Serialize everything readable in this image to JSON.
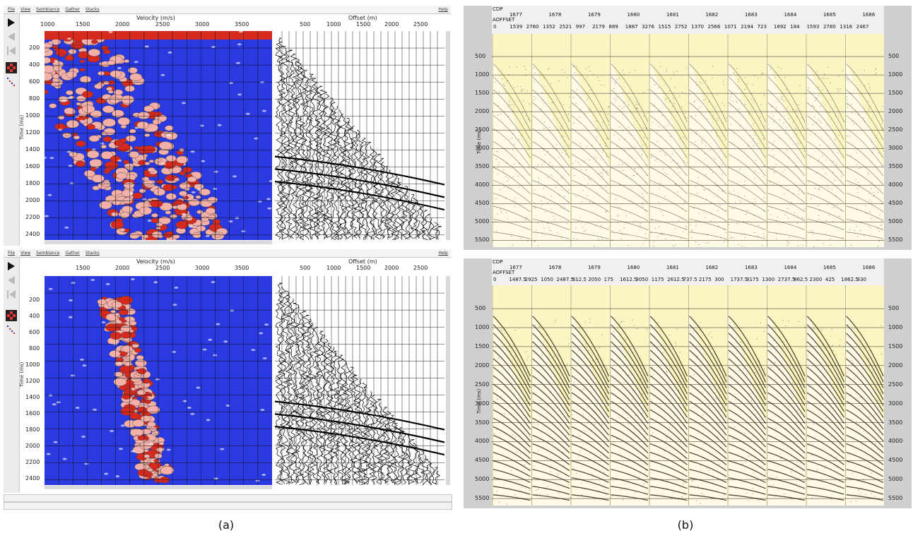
{
  "panel_a": {
    "label": "(a)",
    "windows": [
      {
        "menu": [
          "File",
          "View",
          "Semblance",
          "Gather",
          "Stacks"
        ],
        "help": "Help",
        "velocity_axis_title": "Velocity (m/s)",
        "velocity_ticks": [
          "1000",
          "1500",
          "2000",
          "2500",
          "3000",
          "3500"
        ],
        "offset_axis_title": "Offset (m)",
        "offset_ticks": [
          "500",
          "1000",
          "1500",
          "2000",
          "2500"
        ],
        "time_axis_title": "Time (ms)",
        "time_ticks": [
          "200",
          "400",
          "600",
          "800",
          "1000",
          "1200",
          "1400",
          "1600",
          "1800",
          "2000",
          "2200",
          "2400"
        ],
        "colors": {
          "background": "#2a39e0",
          "hot": "#d62a1f",
          "warm": "#f3b0a8"
        }
      },
      {
        "menu": [
          "File",
          "View",
          "Semblance",
          "Gather",
          "Stacks"
        ],
        "help": "Help",
        "velocity_axis_title": "Velocity (m/s)",
        "velocity_ticks": [
          "1500",
          "2000",
          "2500",
          "3000",
          "3500"
        ],
        "offset_axis_title": "Offset (m)",
        "offset_ticks": [
          "500",
          "1000",
          "1500",
          "2000",
          "2500"
        ],
        "time_axis_title": "Time (ms)",
        "time_ticks": [
          "200",
          "400",
          "600",
          "800",
          "1000",
          "1200",
          "1400",
          "1600",
          "1800",
          "2000",
          "2200",
          "2400"
        ],
        "colors": {
          "background": "#2a39e0",
          "hot": "#d62a1f",
          "warm": "#f3b0a8"
        }
      }
    ]
  },
  "panel_b": {
    "label": "(b)",
    "windows": [
      {
        "cdp_label": "CDP",
        "offset_label": "AOFFSET",
        "cdps": [
          "1677",
          "1678",
          "1679",
          "1680",
          "1681",
          "1682",
          "1683",
          "1684",
          "1685",
          "1686"
        ],
        "offsets": [
          "0",
          "1539",
          "2760",
          "1352",
          "2521",
          "997",
          "2179",
          "889",
          "1887",
          "3276",
          "1515",
          "2752",
          "1370",
          "2566",
          "1071",
          "2194",
          "723",
          "1892",
          "184",
          "1593",
          "2780",
          "1316",
          "2467"
        ],
        "time_axis_title": "Time (ms)",
        "time_ticks": [
          "500",
          "1000",
          "1500",
          "2000",
          "2500",
          "3000",
          "3500",
          "4000",
          "4500",
          "5000",
          "5500"
        ],
        "colors": {
          "background": "#fbf5c4",
          "trace": "#2a1f0a"
        }
      },
      {
        "cdp_label": "CDP",
        "offset_label": "AOFFSET",
        "cdps": [
          "1677",
          "1678",
          "1679",
          "1680",
          "1681",
          "1682",
          "1683",
          "1684",
          "1685",
          "1686"
        ],
        "offsets": [
          "0",
          "1487.5",
          "2925",
          "1050",
          "2487.5",
          "612.5",
          "2050",
          "175",
          "1612.5",
          "3050",
          "1175",
          "2612.5",
          "737.5",
          "2175",
          "300",
          "1737.5",
          "3175",
          "1300",
          "2737.5",
          "862.5",
          "2300",
          "425",
          "1862.5",
          "330"
        ],
        "time_axis_title": "Time (ms)",
        "time_ticks": [
          "500",
          "1000",
          "1500",
          "2000",
          "2500",
          "3000",
          "3500",
          "4000",
          "4500",
          "5000",
          "5500"
        ],
        "colors": {
          "background": "#fbf5c4",
          "trace": "#2a1f0a"
        }
      }
    ]
  }
}
